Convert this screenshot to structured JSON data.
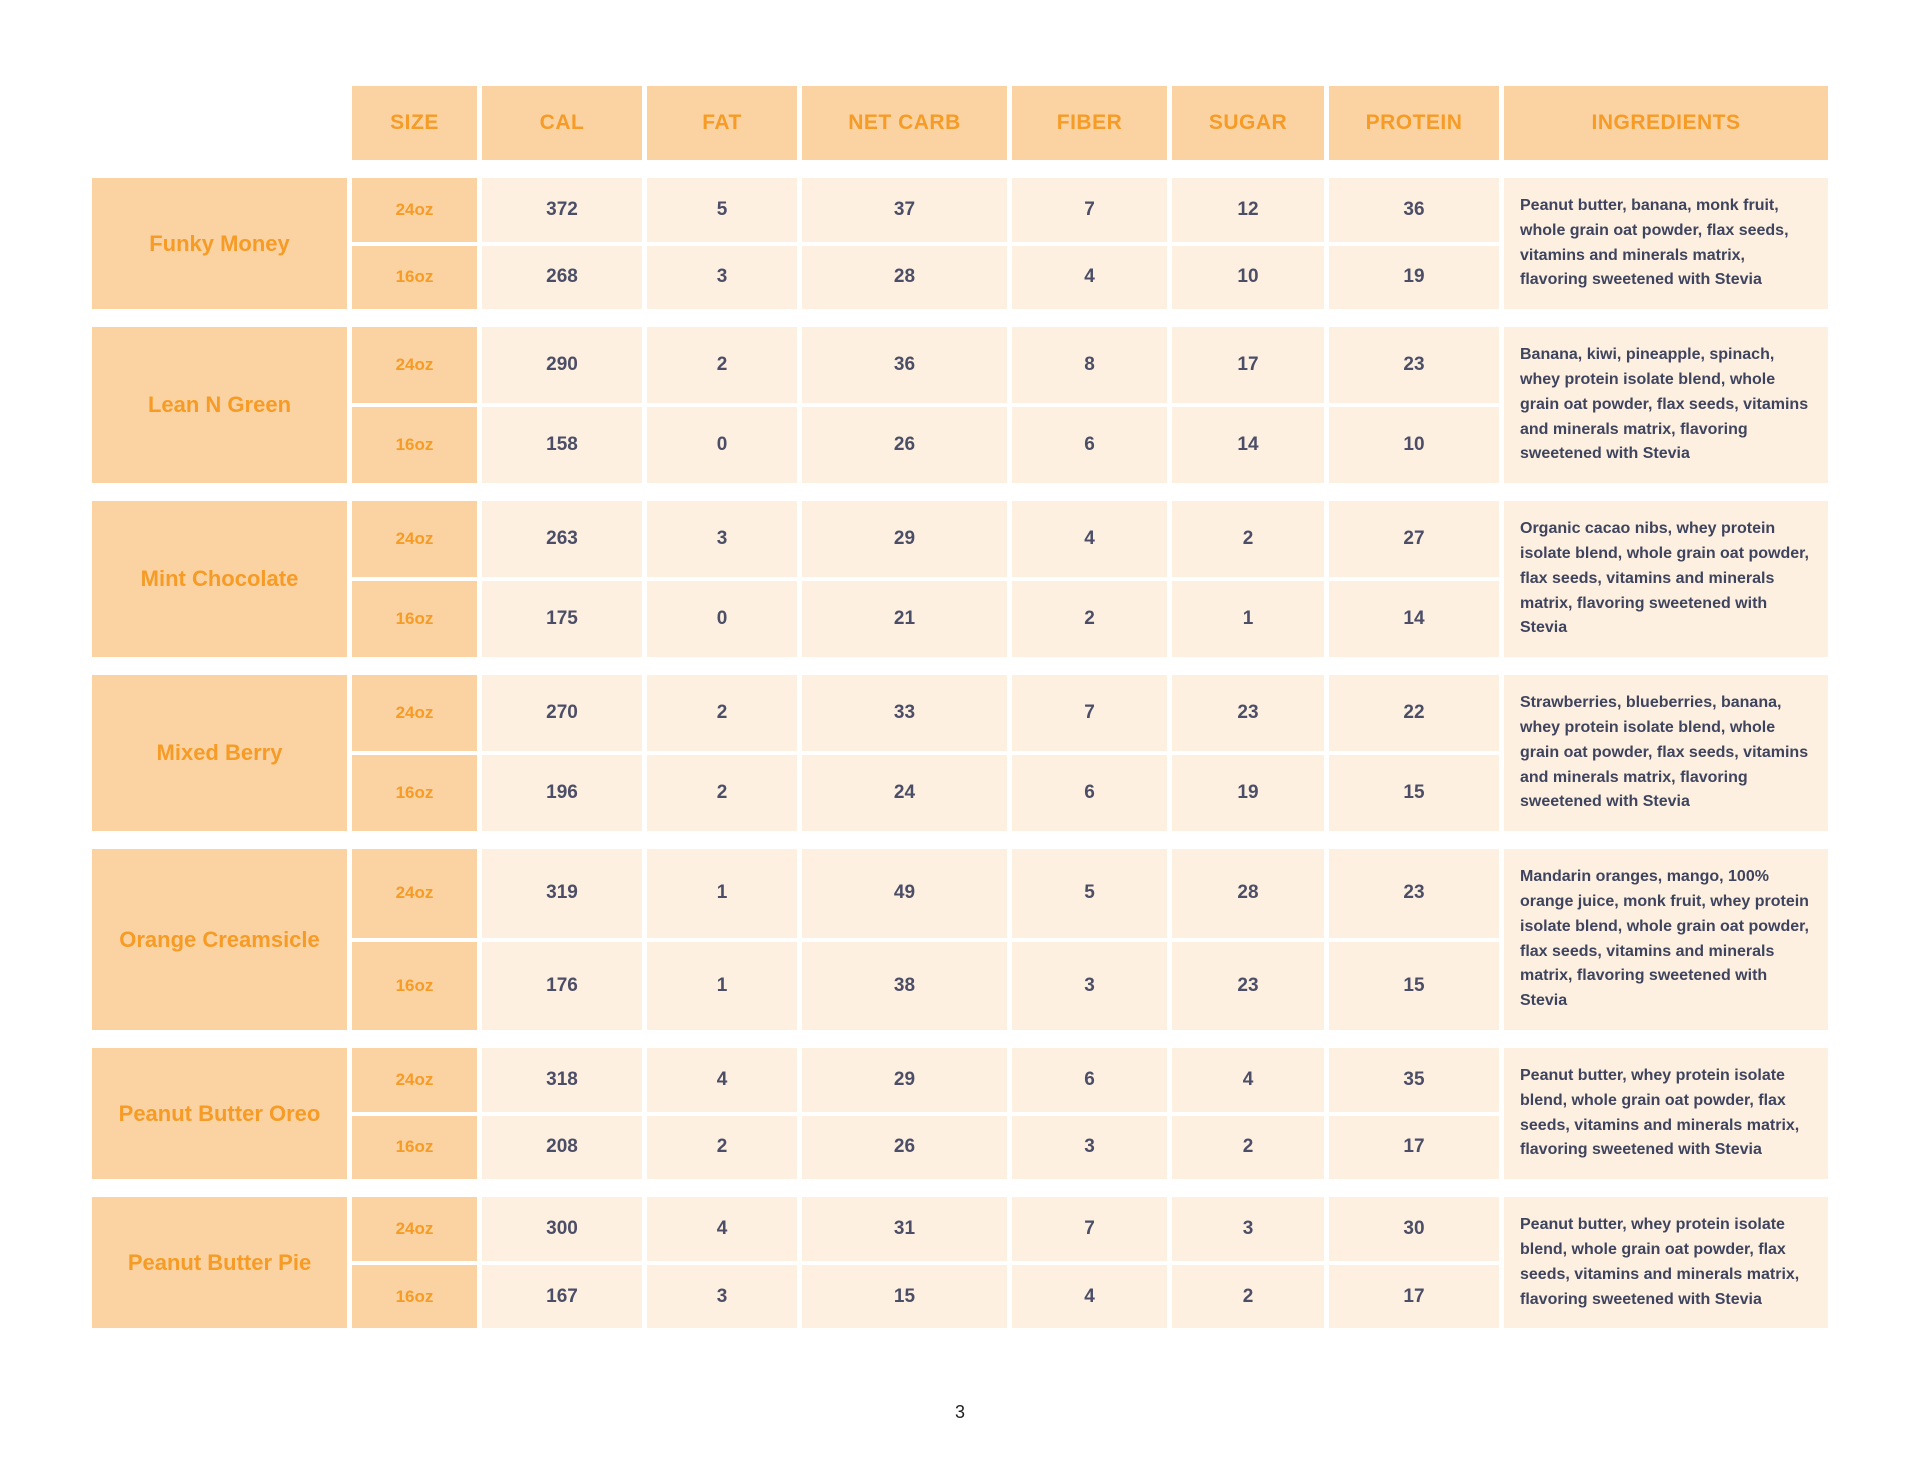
{
  "page": {
    "number": "3"
  },
  "colors": {
    "accent_orange": "#F69B26",
    "header_bg": "#FBD3A2",
    "cell_bg": "#FDF0E1",
    "text_dark": "#4B4E66"
  },
  "table": {
    "columns": {
      "size": "SIZE",
      "cal": "CAL",
      "fat": "FAT",
      "net_carb": "NET CARB",
      "fiber": "FIBER",
      "sugar": "SUGAR",
      "protein": "PROTEIN",
      "ingredients": "INGREDIENTS"
    },
    "products": [
      {
        "name": "Funky Money",
        "sizes": [
          {
            "size": "24oz",
            "cal": "372",
            "fat": "5",
            "net_carb": "37",
            "fiber": "7",
            "sugar": "12",
            "protein": "36"
          },
          {
            "size": "16oz",
            "cal": "268",
            "fat": "3",
            "net_carb": "28",
            "fiber": "4",
            "sugar": "10",
            "protein": "19"
          }
        ],
        "ingredients": "Peanut butter, banana, monk fruit, whole grain oat powder, flax seeds, vitamins and minerals matrix, flavoring sweetened with Stevia"
      },
      {
        "name": "Lean N Green",
        "sizes": [
          {
            "size": "24oz",
            "cal": "290",
            "fat": "2",
            "net_carb": "36",
            "fiber": "8",
            "sugar": "17",
            "protein": "23"
          },
          {
            "size": "16oz",
            "cal": "158",
            "fat": "0",
            "net_carb": "26",
            "fiber": "6",
            "sugar": "14",
            "protein": "10"
          }
        ],
        "ingredients": "Banana, kiwi, pineapple, spinach, whey protein isolate blend, whole grain oat powder, flax seeds, vitamins and minerals matrix, flavoring sweetened with Stevia"
      },
      {
        "name": "Mint Chocolate",
        "sizes": [
          {
            "size": "24oz",
            "cal": "263",
            "fat": "3",
            "net_carb": "29",
            "fiber": "4",
            "sugar": "2",
            "protein": "27"
          },
          {
            "size": "16oz",
            "cal": "175",
            "fat": "0",
            "net_carb": "21",
            "fiber": "2",
            "sugar": "1",
            "protein": "14"
          }
        ],
        "ingredients": "Organic cacao nibs, whey protein isolate blend, whole grain oat powder, flax seeds, vitamins and minerals matrix, flavoring sweetened with Stevia"
      },
      {
        "name": "Mixed Berry",
        "sizes": [
          {
            "size": "24oz",
            "cal": "270",
            "fat": "2",
            "net_carb": "33",
            "fiber": "7",
            "sugar": "23",
            "protein": "22"
          },
          {
            "size": "16oz",
            "cal": "196",
            "fat": "2",
            "net_carb": "24",
            "fiber": "6",
            "sugar": "19",
            "protein": "15"
          }
        ],
        "ingredients": "Strawberries, blueberries, banana, whey protein isolate blend, whole grain oat powder, flax seeds, vitamins and minerals matrix, flavoring sweetened with Stevia"
      },
      {
        "name": "Orange Creamsicle",
        "sizes": [
          {
            "size": "24oz",
            "cal": "319",
            "fat": "1",
            "net_carb": "49",
            "fiber": "5",
            "sugar": "28",
            "protein": "23"
          },
          {
            "size": "16oz",
            "cal": "176",
            "fat": "1",
            "net_carb": "38",
            "fiber": "3",
            "sugar": "23",
            "protein": "15"
          }
        ],
        "ingredients": "Mandarin oranges, mango, 100% orange juice, monk fruit, whey protein isolate blend, whole grain oat powder, flax seeds, vitamins and minerals matrix, flavoring sweetened with Stevia"
      },
      {
        "name": "Peanut Butter Oreo",
        "sizes": [
          {
            "size": "24oz",
            "cal": "318",
            "fat": "4",
            "net_carb": "29",
            "fiber": "6",
            "sugar": "4",
            "protein": "35"
          },
          {
            "size": "16oz",
            "cal": "208",
            "fat": "2",
            "net_carb": "26",
            "fiber": "3",
            "sugar": "2",
            "protein": "17"
          }
        ],
        "ingredients": "Peanut butter, whey protein isolate blend, whole grain oat powder, flax seeds, vitamins and minerals matrix, flavoring sweetened with Stevia"
      },
      {
        "name": "Peanut Butter Pie",
        "sizes": [
          {
            "size": "24oz",
            "cal": "300",
            "fat": "4",
            "net_carb": "31",
            "fiber": "7",
            "sugar": "3",
            "protein": "30"
          },
          {
            "size": "16oz",
            "cal": "167",
            "fat": "3",
            "net_carb": "15",
            "fiber": "4",
            "sugar": "2",
            "protein": "17"
          }
        ],
        "ingredients": "Peanut butter, whey protein isolate blend, whole grain oat powder, flax seeds, vitamins and minerals matrix, flavoring sweetened with Stevia"
      }
    ]
  }
}
